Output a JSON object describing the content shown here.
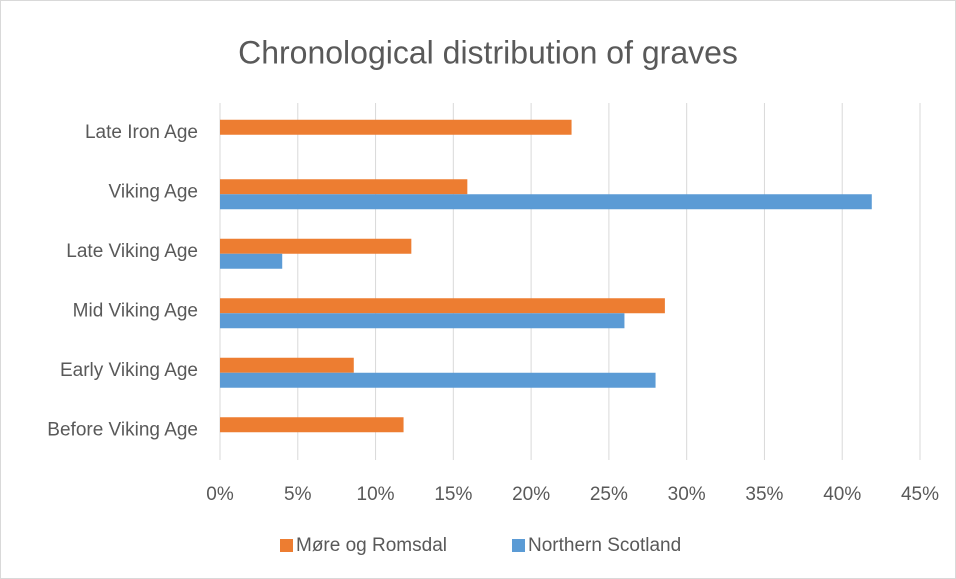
{
  "chart_data": {
    "type": "barh",
    "title": "Chronological distribution of graves",
    "categories": [
      "Late Iron Age",
      "Viking Age",
      "Late Viking Age",
      "Mid Viking Age",
      "Early Viking Age",
      "Before Viking Age"
    ],
    "series": [
      {
        "name": "Møre og Romsdal",
        "color": "#ed7d31",
        "values": [
          22.6,
          15.9,
          12.3,
          28.6,
          8.6,
          11.8
        ]
      },
      {
        "name": "Northern Scotland",
        "color": "#5b9bd5",
        "values": [
          0,
          41.9,
          4.0,
          26.0,
          28.0,
          0
        ]
      }
    ],
    "xlim": [
      0,
      45
    ],
    "xticks": [
      {
        "value": 0,
        "label": "0%"
      },
      {
        "value": 5,
        "label": "5%"
      },
      {
        "value": 10,
        "label": "10%"
      },
      {
        "value": 15,
        "label": "15%"
      },
      {
        "value": 20,
        "label": "20%"
      },
      {
        "value": 25,
        "label": "25%"
      },
      {
        "value": 30,
        "label": "30%"
      },
      {
        "value": 35,
        "label": "35%"
      },
      {
        "value": 40,
        "label": "40%"
      },
      {
        "value": 45,
        "label": "45%"
      }
    ],
    "grid": true,
    "legend": "bottom"
  }
}
